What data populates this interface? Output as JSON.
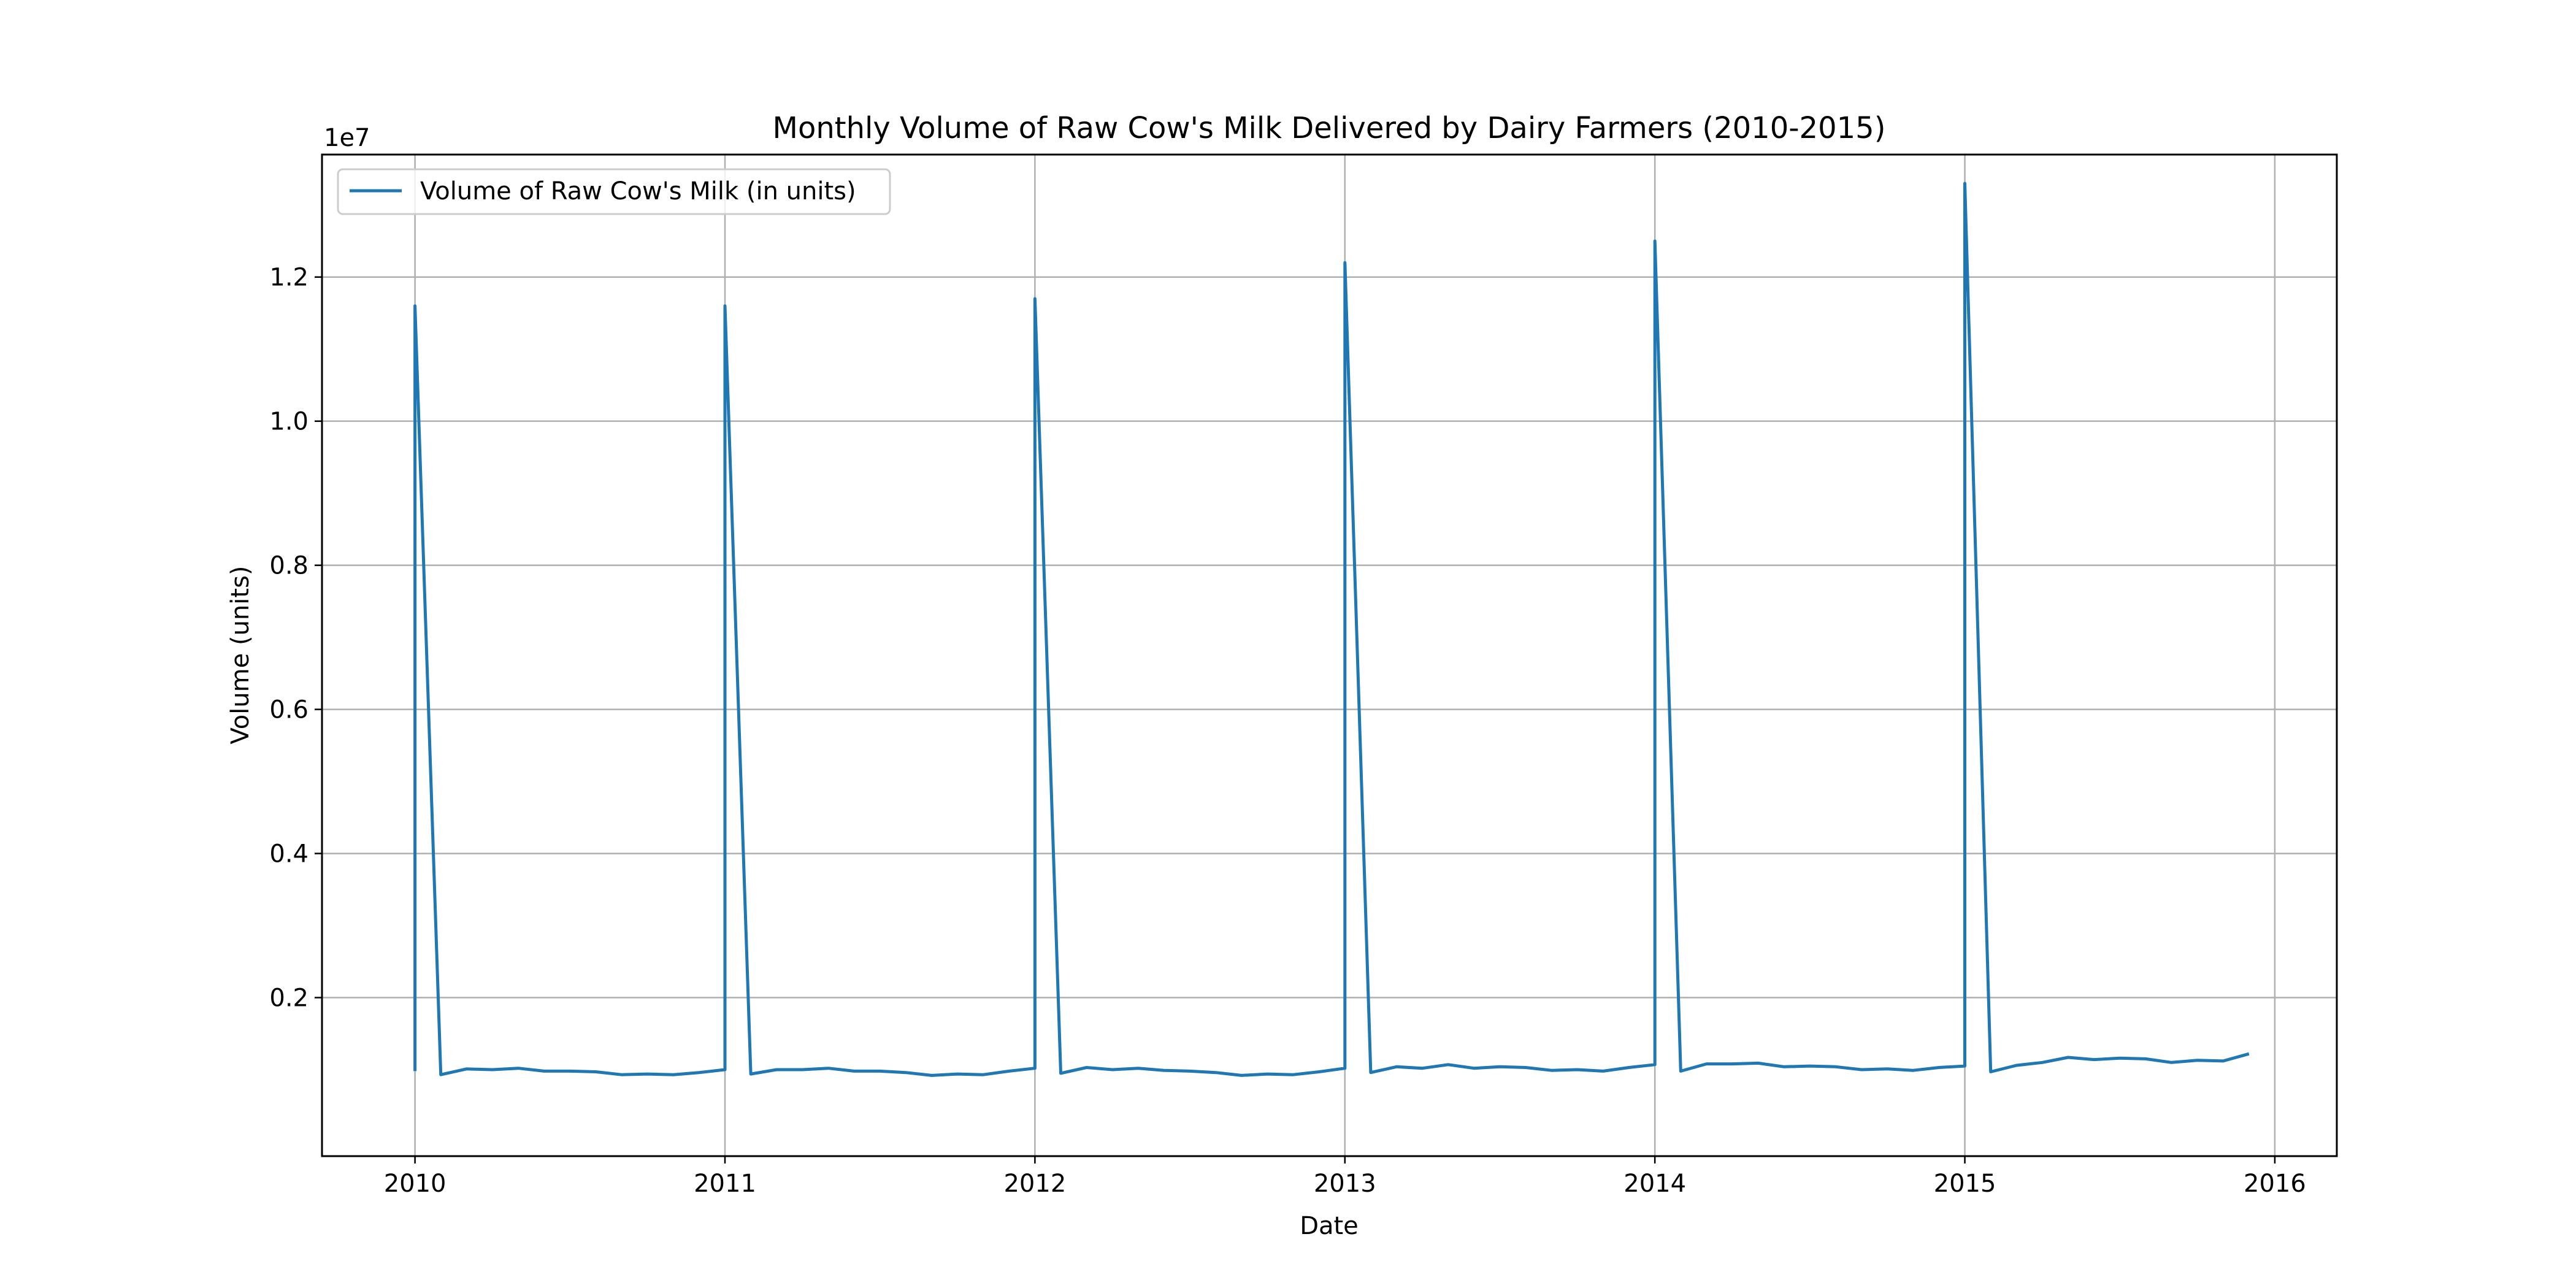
{
  "chart_data": {
    "type": "line",
    "title": "Monthly Volume of Raw Cow's Milk Delivered by Dairy Farmers (2010-2015)",
    "xlabel": "Date",
    "ylabel": "Volume (units)",
    "y_offset_label": "1e7",
    "x_ticks": [
      "2010",
      "2011",
      "2012",
      "2013",
      "2014",
      "2015",
      "2016"
    ],
    "y_ticks": [
      "0.2",
      "0.4",
      "0.6",
      "0.8",
      "1.0",
      "1.2"
    ],
    "x_range": [
      2009.7,
      2016.2
    ],
    "ylim": [
      -0.2,
      13.7
    ],
    "y_unit_note": "values in millions of units (axis multiplier 1e7)",
    "grid": true,
    "legend_position": "upper-left",
    "series": [
      {
        "name": "Volume of Raw Cow's Milk (in units)",
        "color": "#1f77b4",
        "points": [
          [
            "2010-01",
            0.98
          ],
          [
            "2010-01",
            11.6
          ],
          [
            "2010-02",
            0.93
          ],
          [
            "2010-02",
            0.93
          ],
          [
            "2010-03",
            1.01
          ],
          [
            "2010-04",
            1.0
          ],
          [
            "2010-05",
            1.02
          ],
          [
            "2010-06",
            0.98
          ],
          [
            "2010-07",
            0.98
          ],
          [
            "2010-08",
            0.97
          ],
          [
            "2010-09",
            0.93
          ],
          [
            "2010-10",
            0.94
          ],
          [
            "2010-11",
            0.93
          ],
          [
            "2010-12",
            0.96
          ],
          [
            "2011-01",
            1.0
          ],
          [
            "2011-01",
            11.6
          ],
          [
            "2011-02",
            0.94
          ],
          [
            "2011-03",
            1.0
          ],
          [
            "2011-04",
            1.0
          ],
          [
            "2011-05",
            1.02
          ],
          [
            "2011-06",
            0.98
          ],
          [
            "2011-07",
            0.98
          ],
          [
            "2011-08",
            0.96
          ],
          [
            "2011-09",
            0.92
          ],
          [
            "2011-10",
            0.94
          ],
          [
            "2011-11",
            0.93
          ],
          [
            "2011-12",
            0.98
          ],
          [
            "2012-01",
            1.02
          ],
          [
            "2012-01",
            11.7
          ],
          [
            "2012-02",
            0.95
          ],
          [
            "2012-03",
            1.03
          ],
          [
            "2012-04",
            1.0
          ],
          [
            "2012-05",
            1.02
          ],
          [
            "2012-06",
            0.99
          ],
          [
            "2012-07",
            0.98
          ],
          [
            "2012-08",
            0.96
          ],
          [
            "2012-09",
            0.92
          ],
          [
            "2012-10",
            0.94
          ],
          [
            "2012-11",
            0.93
          ],
          [
            "2012-12",
            0.97
          ],
          [
            "2013-01",
            1.02
          ],
          [
            "2013-01",
            12.2
          ],
          [
            "2013-02",
            0.96
          ],
          [
            "2013-03",
            1.04
          ],
          [
            "2013-04",
            1.02
          ],
          [
            "2013-05",
            1.07
          ],
          [
            "2013-06",
            1.02
          ],
          [
            "2013-07",
            1.04
          ],
          [
            "2013-08",
            1.03
          ],
          [
            "2013-09",
            0.99
          ],
          [
            "2013-10",
            1.0
          ],
          [
            "2013-11",
            0.98
          ],
          [
            "2013-12",
            1.03
          ],
          [
            "2014-01",
            1.07
          ],
          [
            "2014-01",
            12.5
          ],
          [
            "2014-02",
            0.98
          ],
          [
            "2014-03",
            1.08
          ],
          [
            "2014-04",
            1.08
          ],
          [
            "2014-05",
            1.09
          ],
          [
            "2014-06",
            1.04
          ],
          [
            "2014-07",
            1.05
          ],
          [
            "2014-08",
            1.04
          ],
          [
            "2014-09",
            1.0
          ],
          [
            "2014-10",
            1.01
          ],
          [
            "2014-11",
            0.99
          ],
          [
            "2014-12",
            1.03
          ],
          [
            "2015-01",
            1.05
          ],
          [
            "2015-01",
            13.3
          ],
          [
            "2015-02",
            0.97
          ],
          [
            "2015-03",
            1.06
          ],
          [
            "2015-04",
            1.1
          ],
          [
            "2015-05",
            1.17
          ],
          [
            "2015-06",
            1.14
          ],
          [
            "2015-07",
            1.16
          ],
          [
            "2015-08",
            1.15
          ],
          [
            "2015-09",
            1.1
          ],
          [
            "2015-10",
            1.13
          ],
          [
            "2015-11",
            1.12
          ],
          [
            "2015-12",
            1.22
          ]
        ]
      }
    ]
  }
}
